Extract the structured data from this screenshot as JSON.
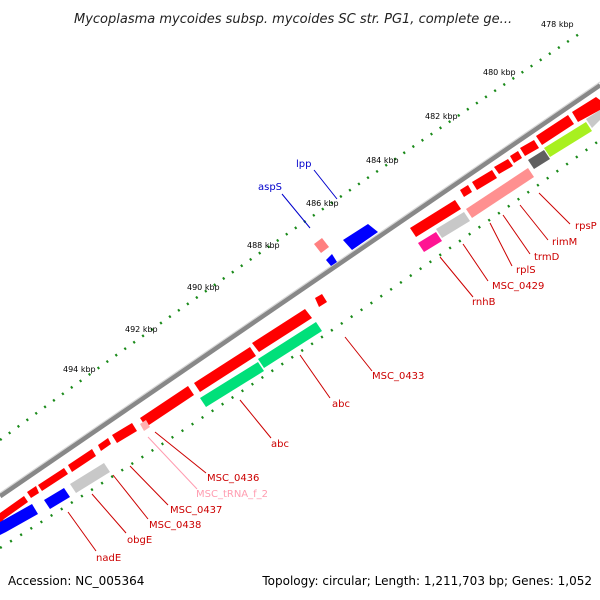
{
  "title": "Mycoplasma mycoides subsp. mycoides SC str. PG1, complete ge...",
  "ticks": [
    "478 kbp",
    "480 kbp",
    "482 kbp",
    "484 kbp",
    "486 kbp",
    "488 kbp",
    "490 kbp",
    "492 kbp",
    "494 kbp"
  ],
  "colors": {
    "cds": "#ff0000",
    "rrna_green": "#00e07a",
    "trna_pink": "#ff9090",
    "blue": "#0000ff",
    "gray": "#c8c8c8",
    "magenta": "#ff1493",
    "yellow_green": "#a8f020",
    "dark_gray": "#606060",
    "backbone": "#888888",
    "tick_green": "#1a8a1a"
  },
  "labels": {
    "lpp": "lpp",
    "aspS": "aspS",
    "rpsP": "rpsP",
    "rimM": "rimM",
    "trmD": "trmD",
    "rplS": "rplS",
    "MSC_0429": "MSC_0429",
    "rnhB": "rnhB",
    "MSC_0433": "MSC_0433",
    "abc1": "abc",
    "abc2": "abc",
    "MSC_0436": "MSC_0436",
    "MSC_tRNA_f_2": "MSC_tRNA_f_2",
    "MSC_0437": "MSC_0437",
    "MSC_0438": "MSC_0438",
    "obgE": "obgE",
    "nadE": "nadE"
  },
  "footer": {
    "accession": "Accession: NC_005364",
    "topology": "Topology: circular; Length: 1,211,703 bp; Genes: 1,052"
  }
}
